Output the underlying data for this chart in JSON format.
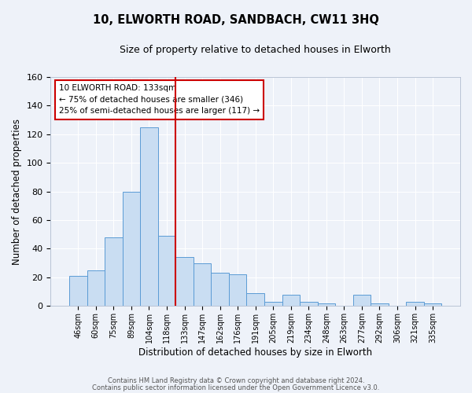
{
  "title": "10, ELWORTH ROAD, SANDBACH, CW11 3HQ",
  "subtitle": "Size of property relative to detached houses in Elworth",
  "xlabel": "Distribution of detached houses by size in Elworth",
  "ylabel": "Number of detached properties",
  "bar_labels": [
    "46sqm",
    "60sqm",
    "75sqm",
    "89sqm",
    "104sqm",
    "118sqm",
    "133sqm",
    "147sqm",
    "162sqm",
    "176sqm",
    "191sqm",
    "205sqm",
    "219sqm",
    "234sqm",
    "248sqm",
    "263sqm",
    "277sqm",
    "292sqm",
    "306sqm",
    "321sqm",
    "335sqm"
  ],
  "bar_values": [
    21,
    25,
    48,
    80,
    125,
    49,
    34,
    30,
    23,
    22,
    9,
    3,
    8,
    3,
    2,
    0,
    8,
    2,
    0,
    3,
    2
  ],
  "bar_color": "#c9ddf2",
  "bar_edge_color": "#5b9bd5",
  "vline_color": "#cc0000",
  "annotation_title": "10 ELWORTH ROAD: 133sqm",
  "annotation_line1": "← 75% of detached houses are smaller (346)",
  "annotation_line2": "25% of semi-detached houses are larger (117) →",
  "annotation_box_color": "#ffffff",
  "annotation_box_edge": "#cc0000",
  "ylim": [
    0,
    160
  ],
  "yticks": [
    0,
    20,
    40,
    60,
    80,
    100,
    120,
    140,
    160
  ],
  "bg_color": "#eef2f9",
  "grid_color": "#ffffff",
  "footer1": "Contains HM Land Registry data © Crown copyright and database right 2024.",
  "footer2": "Contains public sector information licensed under the Open Government Licence v3.0."
}
